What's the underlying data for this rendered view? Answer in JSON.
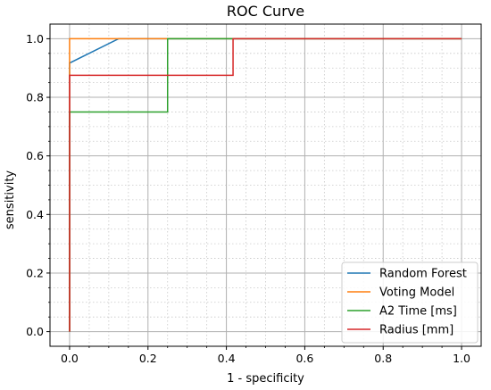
{
  "chart_data": {
    "type": "line",
    "title": "ROC Curve",
    "xlabel": "1 - specificity",
    "ylabel": "sensitivity",
    "xlim": [
      -0.05,
      1.05
    ],
    "ylim": [
      -0.05,
      1.05
    ],
    "xticks": [
      0.0,
      0.2,
      0.4,
      0.6,
      0.8,
      1.0
    ],
    "xtick_labels": [
      "0.0",
      "0.2",
      "0.4",
      "0.6",
      "0.8",
      "1.0"
    ],
    "yticks": [
      0.0,
      0.2,
      0.4,
      0.6,
      0.8,
      1.0
    ],
    "ytick_labels": [
      "0.0",
      "0.2",
      "0.4",
      "0.6",
      "0.8",
      "1.0"
    ],
    "grid": true,
    "minor_grid": true,
    "legend_position": "lower-right",
    "series": [
      {
        "name": "Random Forest",
        "color": "#1f77b4",
        "x": [
          0.0,
          0.0,
          0.0,
          0.125,
          1.0
        ],
        "y": [
          0.0,
          0.0,
          0.917,
          1.0,
          1.0
        ]
      },
      {
        "name": "Voting Model",
        "color": "#ff7f0e",
        "x": [
          0.0,
          0.0,
          0.0,
          1.0
        ],
        "y": [
          0.0,
          0.0,
          1.0,
          1.0
        ]
      },
      {
        "name": "A2 Time [ms]",
        "color": "#2ca02c",
        "x": [
          0.0,
          0.0,
          0.0,
          0.25,
          0.25,
          1.0
        ],
        "y": [
          0.0,
          0.0,
          0.75,
          0.75,
          1.0,
          1.0
        ]
      },
      {
        "name": "Radius [mm]",
        "color": "#d62728",
        "x": [
          0.0,
          0.0,
          0.0,
          0.417,
          0.417,
          1.0
        ],
        "y": [
          0.0,
          0.0,
          0.875,
          0.875,
          1.0,
          1.0
        ]
      }
    ]
  }
}
